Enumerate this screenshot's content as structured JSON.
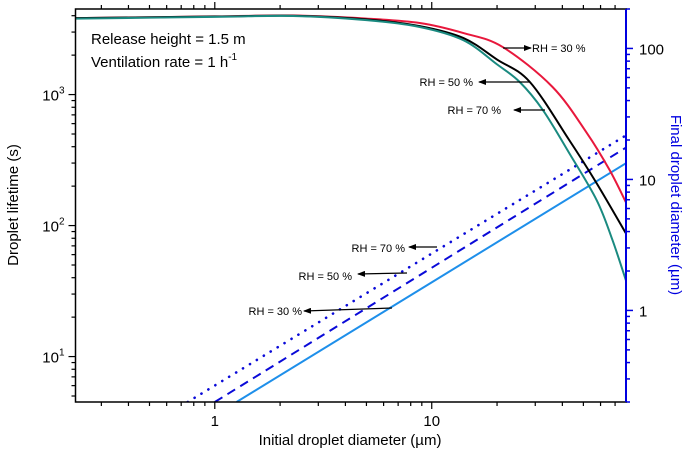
{
  "chart_data": {
    "type": "line",
    "xlabel": "Initial droplet diameter (µm)",
    "ylabel": "Droplet lifetime (s)",
    "y2label": "Final droplet diameter (µm)",
    "xscale": "log",
    "yscale": "log",
    "y2scale": "log",
    "xlim": [
      0.228,
      78.6
    ],
    "ylim": [
      4.5,
      4500
    ],
    "y2lim": [
      0.2,
      200
    ],
    "grid": false,
    "x_ticks": [
      {
        "value": 1,
        "label": "1"
      },
      {
        "value": 10,
        "label": "10"
      }
    ],
    "y_ticks": [
      {
        "value": 10,
        "base": "10",
        "exp": "1"
      },
      {
        "value": 100,
        "base": "10",
        "exp": "2"
      },
      {
        "value": 1000,
        "base": "10",
        "exp": "3"
      }
    ],
    "y2_ticks": [
      {
        "value": 1,
        "label": "1"
      },
      {
        "value": 10,
        "label": "10"
      },
      {
        "value": 100,
        "label": "100"
      }
    ],
    "annotation_text": {
      "line1": "Release height = 1.5 m",
      "line2_base": "Ventilation rate = 1 h",
      "line2_sup": "-1"
    },
    "colors": {
      "rh30_lifetime": "#E8183C",
      "rh50_lifetime": "#000000",
      "rh70_lifetime": "#1A8A80",
      "rh30_diameter": "#1E8FEA",
      "rh50_diameter": "#0A0AD8",
      "rh70_diameter": "#0A0AD8",
      "right_axis": "#0000E0"
    },
    "lifetime_series": [
      {
        "name": "RH = 30 %",
        "axis": "left",
        "style": "solid",
        "color": "#E8183C",
        "points": [
          [
            0.228,
            3830
          ],
          [
            1,
            3950
          ],
          [
            2.3,
            4010
          ],
          [
            5,
            3800
          ],
          [
            8.8,
            3520
          ],
          [
            14,
            2950
          ],
          [
            21.2,
            2310
          ],
          [
            36,
            1145
          ],
          [
            51.8,
            511
          ],
          [
            66,
            266
          ],
          [
            78.6,
            150
          ]
        ]
      },
      {
        "name": "RH = 50 %",
        "axis": "left",
        "style": "solid",
        "color": "#000000",
        "points": [
          [
            0.228,
            3830
          ],
          [
            1,
            3940
          ],
          [
            2.3,
            4000
          ],
          [
            5,
            3750
          ],
          [
            8.8,
            3330
          ],
          [
            14,
            2700
          ],
          [
            20,
            1850
          ],
          [
            28.3,
            1250
          ],
          [
            43,
            450
          ],
          [
            57.5,
            211
          ],
          [
            78.6,
            87
          ]
        ]
      },
      {
        "name": "RH = 70 %",
        "axis": "left",
        "style": "solid",
        "color": "#1A8A80",
        "points": [
          [
            0.228,
            3800
          ],
          [
            1,
            3920
          ],
          [
            2.3,
            3980
          ],
          [
            5,
            3700
          ],
          [
            8.8,
            3280
          ],
          [
            14,
            2600
          ],
          [
            20,
            1700
          ],
          [
            25.4,
            1250
          ],
          [
            32.5,
            764
          ],
          [
            43,
            358
          ],
          [
            57.5,
            157
          ],
          [
            68,
            78
          ],
          [
            78.6,
            38
          ]
        ]
      }
    ],
    "diameter_series": [
      {
        "name": "RH = 30 %",
        "axis": "right",
        "style": "solid",
        "color": "#1E8FEA",
        "points": [
          [
            1.26,
            0.2
          ],
          [
            78.6,
            13.3
          ]
        ]
      },
      {
        "name": "RH = 50 %",
        "axis": "right",
        "style": "dashed",
        "color": "#0A0AD8",
        "points": [
          [
            1.0,
            0.2
          ],
          [
            78.6,
            17.5
          ]
        ]
      },
      {
        "name": "RH = 70 %",
        "axis": "right",
        "style": "dotted",
        "color": "#0A0AD8",
        "points": [
          [
            0.75,
            0.2
          ],
          [
            78.6,
            21.7
          ]
        ]
      }
    ],
    "labels": [
      {
        "text": "RH = 30 %",
        "group": "lifetime"
      },
      {
        "text": "RH = 50 %",
        "group": "lifetime"
      },
      {
        "text": "RH = 70 %",
        "group": "lifetime"
      },
      {
        "text": "RH = 70 %",
        "group": "diameter"
      },
      {
        "text": "RH = 50 %",
        "group": "diameter"
      },
      {
        "text": "RH = 30 %",
        "group": "diameter"
      }
    ]
  }
}
